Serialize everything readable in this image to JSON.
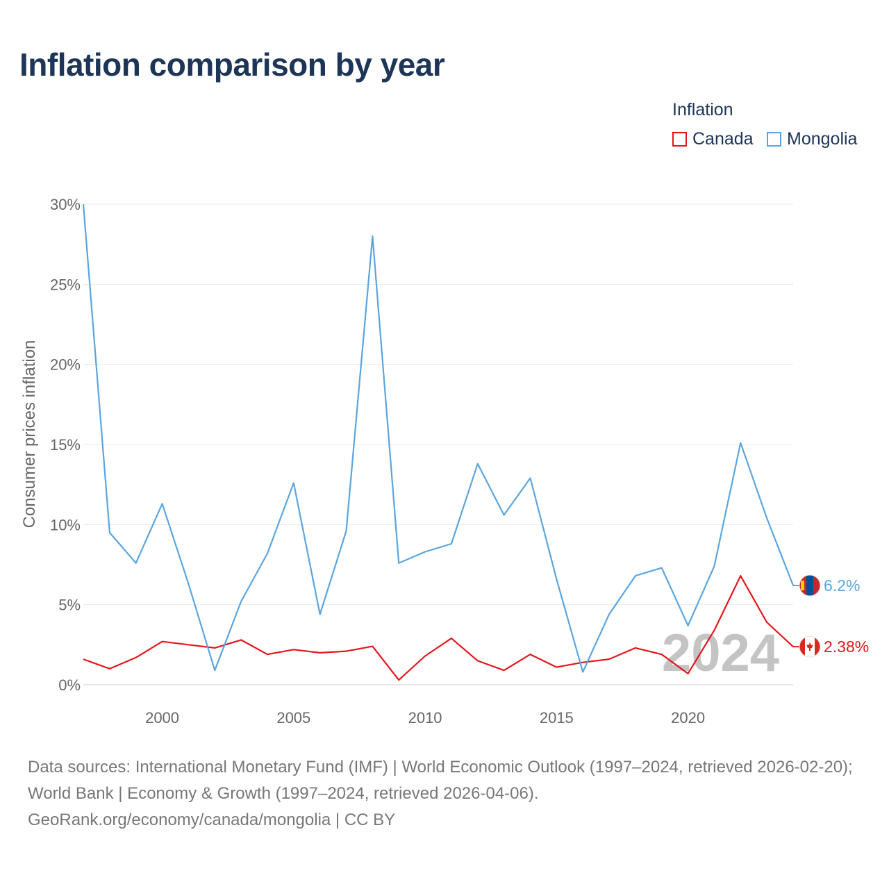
{
  "title": "Inflation comparison by year",
  "legend": {
    "title": "Inflation",
    "items": [
      {
        "label": "Canada",
        "color": "#e3161b"
      },
      {
        "label": "Mongolia",
        "color": "#5aa5e0"
      }
    ]
  },
  "chart_data": {
    "type": "line",
    "title": "Inflation comparison by year",
    "ylabel": "Consumer prices inflation",
    "xlabel": "",
    "x": [
      1997,
      1998,
      1999,
      2000,
      2001,
      2002,
      2003,
      2004,
      2005,
      2006,
      2007,
      2008,
      2009,
      2010,
      2011,
      2012,
      2013,
      2014,
      2015,
      2016,
      2017,
      2018,
      2019,
      2020,
      2021,
      2022,
      2023,
      2024
    ],
    "xlim": [
      1997,
      2024
    ],
    "ylim": [
      0,
      30
    ],
    "x_ticks": [
      2000,
      2005,
      2010,
      2015,
      2020
    ],
    "x_tick_labels": [
      "2000",
      "2005",
      "2010",
      "2015",
      "2020"
    ],
    "y_ticks": [
      0,
      5,
      10,
      15,
      20,
      25,
      30
    ],
    "y_tick_labels": [
      "0%",
      "5%",
      "10%",
      "15%",
      "20%",
      "25%",
      "30%"
    ],
    "series": [
      {
        "name": "Canada",
        "color": "#e3161b",
        "values": [
          1.6,
          1.0,
          1.7,
          2.7,
          2.5,
          2.3,
          2.8,
          1.9,
          2.2,
          2.0,
          2.1,
          2.4,
          0.3,
          1.8,
          2.9,
          1.5,
          0.9,
          1.9,
          1.1,
          1.4,
          1.6,
          2.3,
          1.9,
          0.7,
          3.4,
          6.8,
          3.9,
          2.38
        ],
        "end_label": "2.38%"
      },
      {
        "name": "Mongolia",
        "color": "#5aa5e0",
        "values": [
          30.0,
          9.5,
          7.6,
          11.3,
          6.3,
          0.9,
          5.2,
          8.2,
          12.6,
          4.4,
          9.6,
          28.0,
          7.6,
          8.3,
          8.8,
          13.8,
          10.6,
          12.9,
          6.6,
          0.8,
          4.4,
          6.8,
          7.3,
          3.7,
          7.4,
          15.1,
          10.4,
          6.2
        ],
        "end_label": "6.2%"
      }
    ],
    "watermark_year": "2024",
    "grid": true
  },
  "footer": {
    "sources": "Data sources: International Monetary Fund (IMF) | World Economic Outlook (1997–2024, retrieved 2026-02-20); World Bank | Economy & Growth (1997–2024, retrieved 2026-04-06).",
    "credit": "GeoRank.org/economy/canada/mongolia | CC BY"
  }
}
